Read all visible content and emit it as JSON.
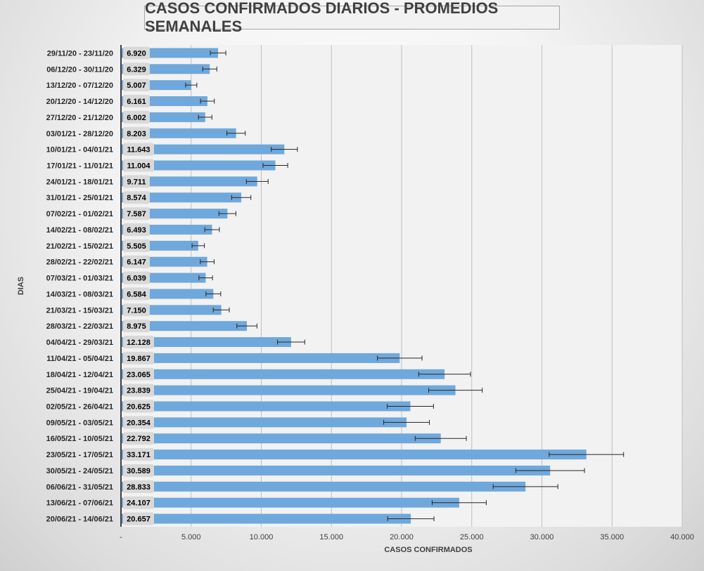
{
  "chart_data": {
    "type": "bar",
    "orientation": "horizontal",
    "title": "CASOS CONFIRMADOS DIARIOS - PROMEDIOS SEMANALES",
    "xlabel": "CASOS CONFIRMADOS",
    "ylabel": "DIAS",
    "xlim": [
      0,
      40000
    ],
    "xticks": [
      0,
      5000,
      10000,
      15000,
      20000,
      25000,
      30000,
      35000,
      40000
    ],
    "xtick_labels": [
      "-",
      "5.000",
      "10.000",
      "15.000",
      "20.000",
      "25.000",
      "30.000",
      "35.000",
      "40.000"
    ],
    "grid": "vertical",
    "bar_color": "#6fa8dc",
    "error_bars": "±8%",
    "error_fraction": 0.08,
    "categories": [
      "29/11/20 - 23/11/20",
      "06/12/20 - 30/11/20",
      "13/12/20 - 07/12/20",
      "20/12/20 - 14/12/20",
      "27/12/20 - 21/12/20",
      "03/01/21 - 28/12/20",
      "10/01/21 - 04/01/21",
      "17/01/21 - 11/01/21",
      "24/01/21 - 18/01/21",
      "31/01/21 - 25/01/21",
      "07/02/21 - 01/02/21",
      "14/02/21 - 08/02/21",
      "21/02/21 - 15/02/21",
      "28/02/21 - 22/02/21",
      "07/03/21 - 01/03/21",
      "14/03/21 - 08/03/21",
      "21/03/21 - 15/03/21",
      "28/03/21 - 22/03/21",
      "04/04/21 - 29/03/21",
      "11/04/21 - 05/04/21",
      "18/04/21 - 12/04/21",
      "25/04/21 - 19/04/21",
      "02/05/21 - 26/04/21",
      "09/05/21 - 03/05/21",
      "16/05/21 - 10/05/21",
      "23/05/21 - 17/05/21",
      "30/05/21 - 24/05/21",
      "06/06/21 - 31/05/21",
      "13/06/21 - 07/06/21",
      "20/06/21 - 14/06/21"
    ],
    "values": [
      6920,
      6329,
      5007,
      6161,
      6002,
      8203,
      11643,
      11004,
      9711,
      8574,
      7587,
      6493,
      5505,
      6147,
      6039,
      6584,
      7150,
      8975,
      12128,
      19867,
      23065,
      23839,
      20625,
      20354,
      22792,
      33171,
      30589,
      28833,
      24107,
      20657
    ],
    "data_labels": [
      "6.920",
      "6.329",
      "5.007",
      "6.161",
      "6.002",
      "8.203",
      "11.643",
      "11.004",
      "9.711",
      "8.574",
      "7.587",
      "6.493",
      "5.505",
      "6.147",
      "6.039",
      "6.584",
      "7.150",
      "8.975",
      "12.128",
      "19.867",
      "23.065",
      "23.839",
      "20.625",
      "20.354",
      "22.792",
      "33.171",
      "30.589",
      "28.833",
      "24.107",
      "20.657"
    ]
  }
}
